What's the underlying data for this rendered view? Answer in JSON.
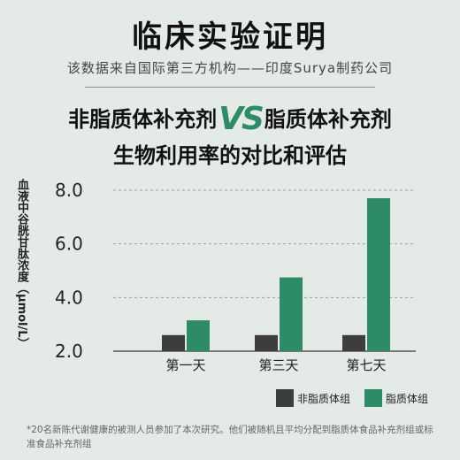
{
  "title": "临床实验证明",
  "subtitle": "该数据来自国际第三方机构——印度Surya制药公司",
  "headline": {
    "part1": "非脂质体补充剂",
    "vs": "VS",
    "part2": "脂质体补充剂",
    "line2": "生物利用率的对比和评估"
  },
  "footnote": "*20名新陈代谢健康的被测人员参加了本次研究。他们被随机且平均分配到脂质体食品补充剂组或标准食品补充剂组",
  "colors": {
    "non_liposomal": "#3d3d3d",
    "liposomal": "#2e8b68"
  },
  "chart_data": {
    "type": "bar",
    "ylabel": "血液中谷胱甘肽浓度（μmol/L）",
    "categories": [
      "第一天",
      "第三天",
      "第七天"
    ],
    "yticks": [
      "2.0",
      "4.0",
      "6.0",
      "8.0"
    ],
    "ylim": [
      2.0,
      8.0
    ],
    "grid": true,
    "legend_position": "bottom-right",
    "series": [
      {
        "name": "非脂质体组",
        "values": [
          2.6,
          2.6,
          2.6
        ]
      },
      {
        "name": "脂质体组",
        "values": [
          3.15,
          4.75,
          7.7
        ]
      }
    ]
  }
}
